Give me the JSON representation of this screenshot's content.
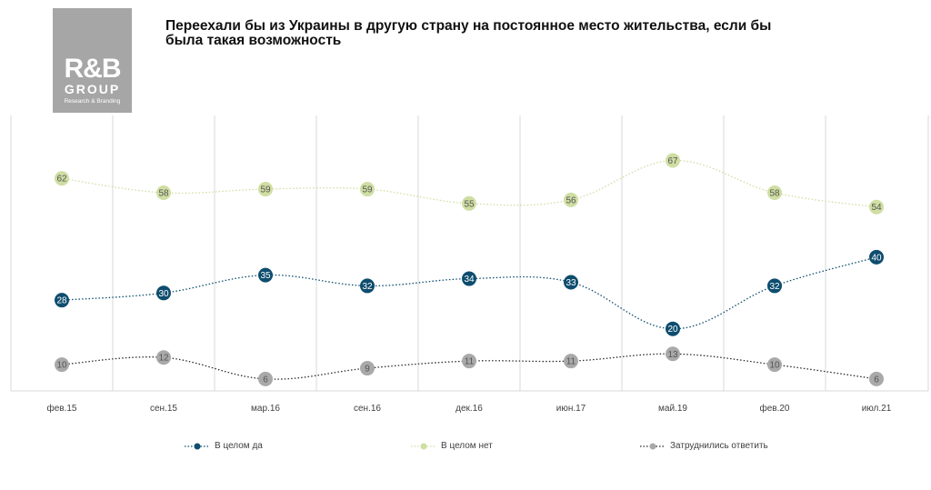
{
  "logo": {
    "mark": "R&B",
    "group": "GROUP",
    "tagline": "Research & Branding"
  },
  "chart_data": {
    "type": "line",
    "title": "Переехали бы из Украины в другую страну на постоянное место жительства, если бы была такая возможность",
    "categories": [
      "фев.15",
      "сен.15",
      "мар.16",
      "сен.16",
      "дек.16",
      "июн.17",
      "май.19",
      "фев.20",
      "июл.21"
    ],
    "series": [
      {
        "name": "В целом да",
        "color": "#0e4d6e",
        "label_color": "#ffffff",
        "values": [
          28,
          30,
          35,
          32,
          34,
          33,
          20,
          32,
          40
        ]
      },
      {
        "name": "В целом нет",
        "color": "#cfdea3",
        "label_color": "#555555",
        "values": [
          62,
          58,
          59,
          59,
          55,
          56,
          67,
          58,
          54
        ]
      },
      {
        "name": "Затруднились  ответить",
        "color": "#a9a9a9",
        "label_color": "#555555",
        "line_color": "#2b2b2b",
        "values": [
          10,
          12,
          6,
          9,
          11,
          11,
          13,
          10,
          6
        ]
      }
    ],
    "grid": "vertical",
    "legend_position": "bottom",
    "line_style": "dotted, smoothed",
    "data_labels": true
  }
}
